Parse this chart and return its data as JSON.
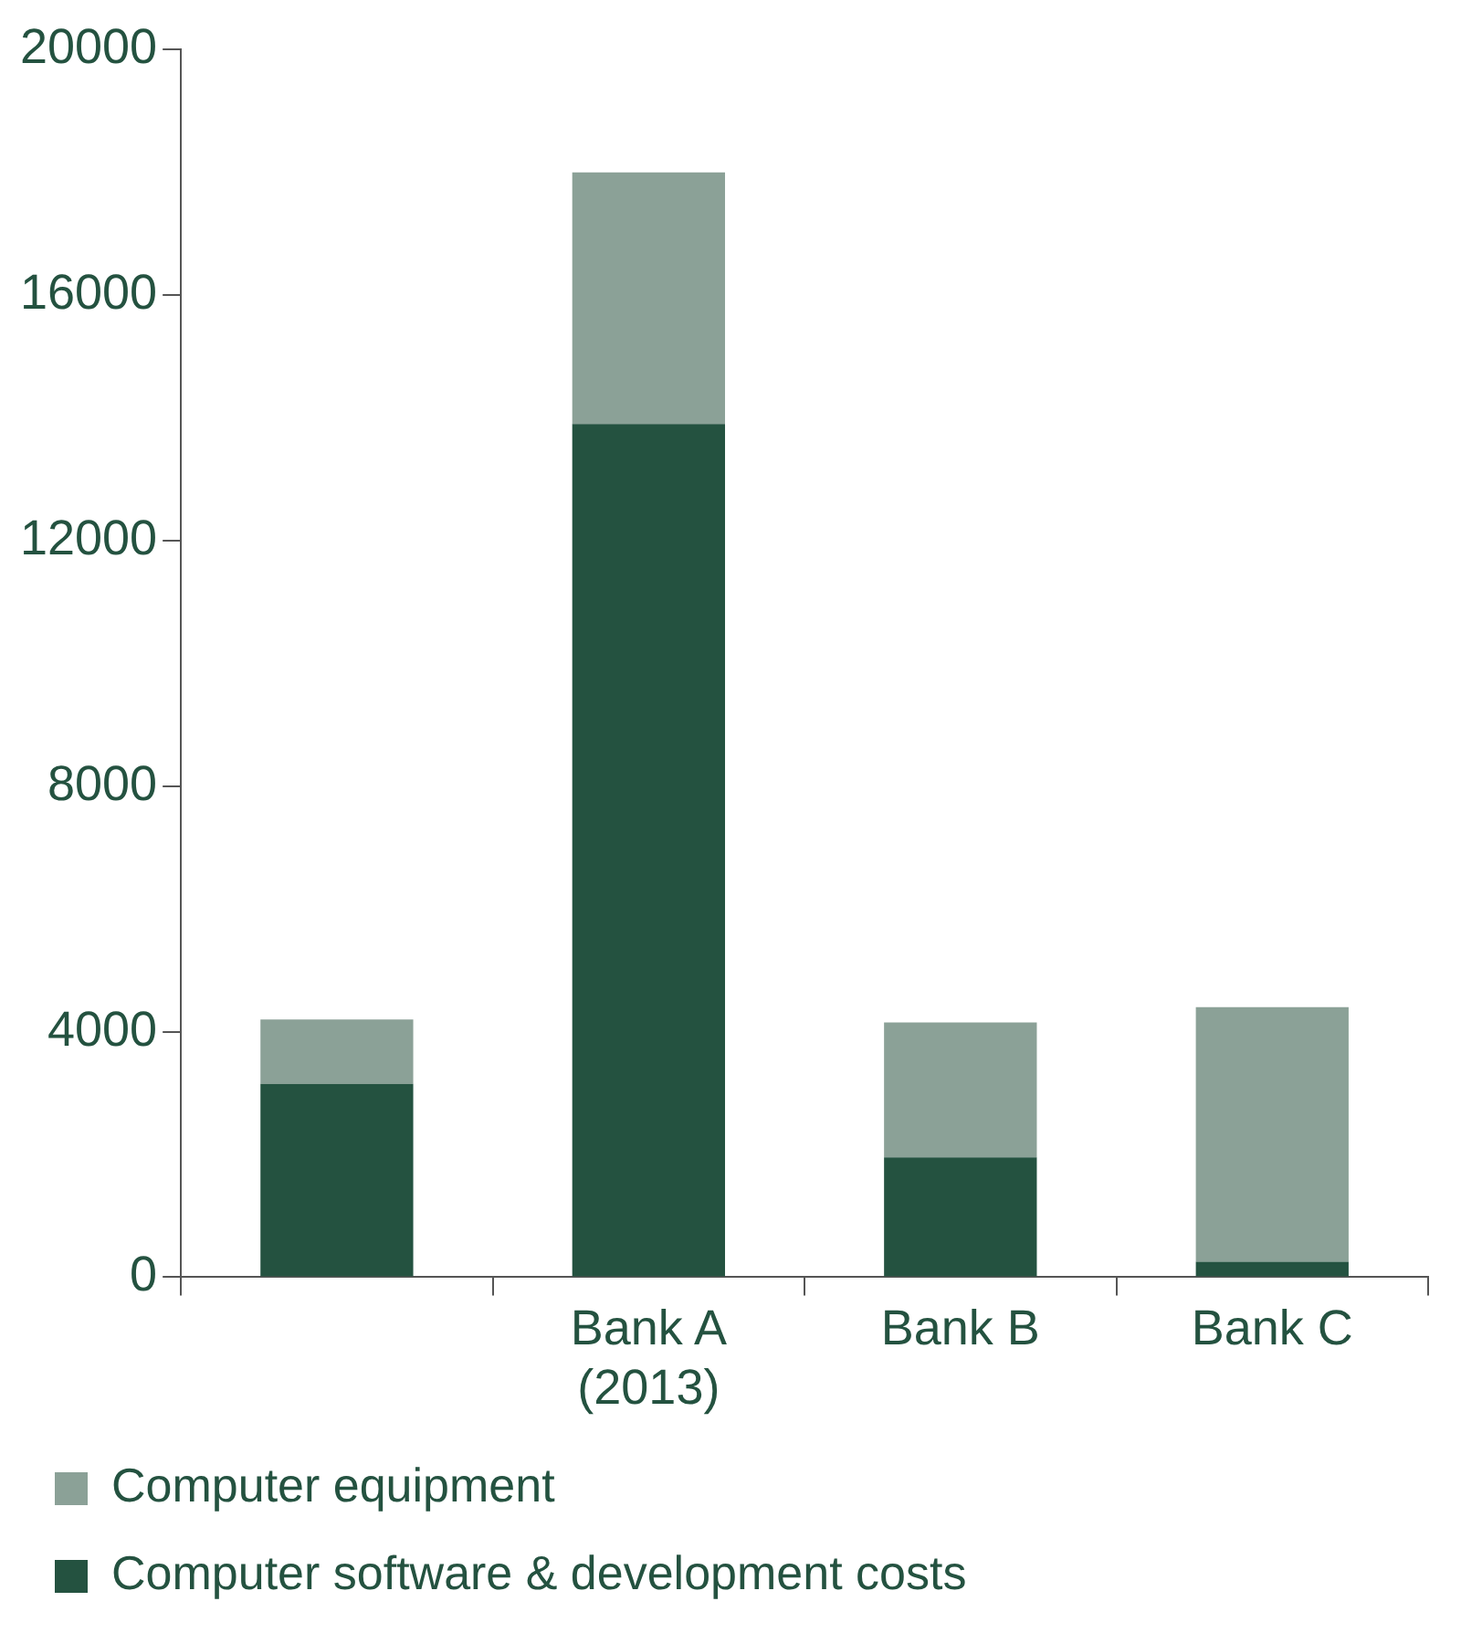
{
  "chart_data": {
    "type": "bar",
    "stacked": true,
    "categories": [
      null,
      "Bank A (2013)",
      "Bank B",
      "Bank C"
    ],
    "series": [
      {
        "name": "Computer software & development costs",
        "color": "#245240",
        "values": [
          3150,
          13900,
          1950,
          250
        ]
      },
      {
        "name": "Computer equipment",
        "color": "#8ba197",
        "values": [
          1050,
          4100,
          2200,
          4150
        ]
      }
    ],
    "ylim": [
      0,
      20000
    ],
    "yticks": [
      0,
      4000,
      8000,
      12000,
      16000,
      20000
    ],
    "grid": false,
    "legend": "bottom"
  }
}
